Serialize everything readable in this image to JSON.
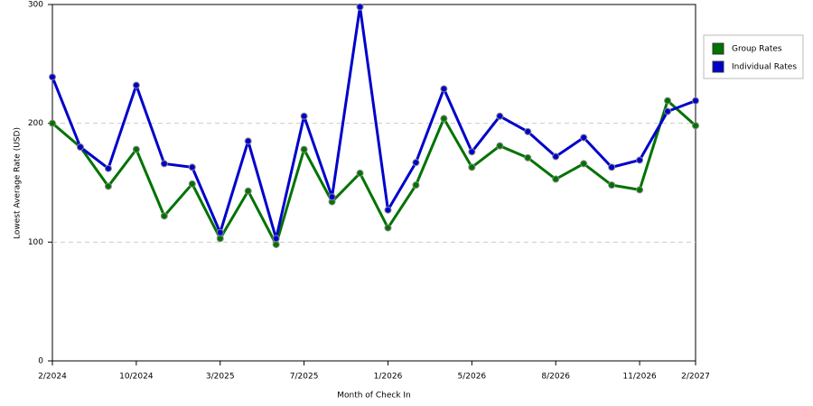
{
  "chart_data": {
    "type": "line",
    "x_label": "Month of Check In",
    "y_label": "Lowest Average Rate (USD)",
    "categories": [
      "2/2024",
      null,
      null,
      "10/2024",
      null,
      null,
      "3/2025",
      null,
      null,
      "7/2025",
      null,
      null,
      "1/2026",
      null,
      null,
      "5/2026",
      null,
      null,
      "8/2026",
      null,
      null,
      "11/2026",
      null,
      "2/2027"
    ],
    "series": [
      {
        "name": "Group Rates",
        "color": "#007300",
        "values": [
          200,
          180,
          147,
          178,
          122,
          149,
          103,
          143,
          98,
          178,
          134,
          158,
          112,
          148,
          204,
          163,
          181,
          171,
          153,
          166,
          148,
          144,
          219,
          198
        ]
      },
      {
        "name": "Individual Rates",
        "color": "#0000cc",
        "values": [
          239,
          180,
          162,
          232,
          166,
          163,
          108,
          185,
          103,
          206,
          138,
          298,
          127,
          167,
          229,
          176,
          206,
          193,
          172,
          188,
          163,
          169,
          210,
          219
        ]
      }
    ],
    "ylim": [
      0,
      300
    ],
    "yticks": [
      0,
      100,
      200,
      300
    ],
    "grid": true,
    "legend": "right"
  }
}
